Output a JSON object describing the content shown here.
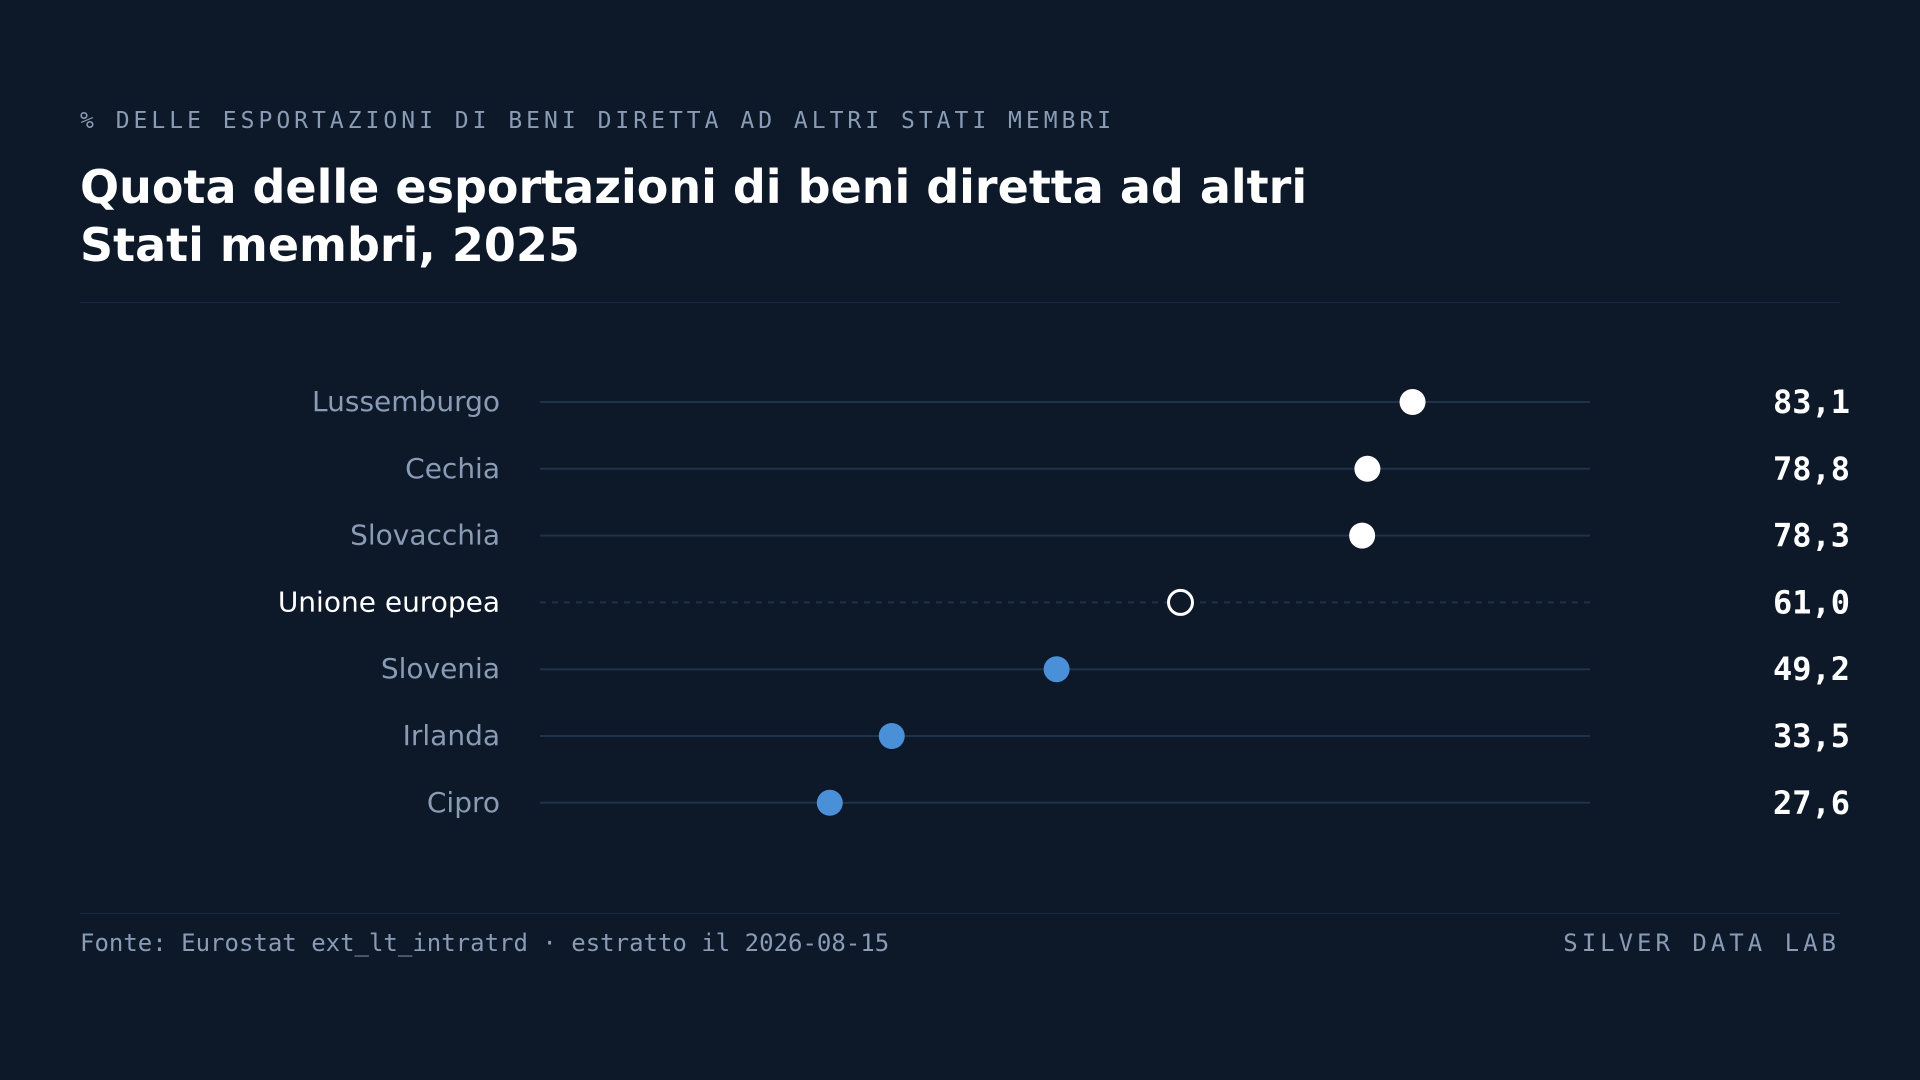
{
  "kicker": "% DELLE ESPORTAZIONI DI BENI DIRETTA AD ALTRI STATI MEMBRI",
  "title_line1": "Quota delle esportazioni di beni diretta ad altri",
  "title_line2": "Stati membri, 2025",
  "footer": {
    "source": "Fonte: Eurostat ext_lt_intratrd · estratto il 2026-08-15",
    "brand": "SILVER DATA LAB"
  },
  "colors": {
    "background": "#0d1929",
    "high": "#ffffff",
    "low": "#4a90d9",
    "reference": "#ffffff",
    "track": "#1f3348"
  },
  "chart_data": {
    "type": "scatter",
    "subtype": "dot-plot",
    "xlim": [
      0,
      100
    ],
    "grid": false,
    "categories": [
      "Lussemburgo",
      "Cechia",
      "Slovacchia",
      "Unione europea",
      "Slovenia",
      "Irlanda",
      "Cipro"
    ],
    "values": [
      83.1,
      78.8,
      78.3,
      61.0,
      49.2,
      33.5,
      27.6
    ],
    "labels": [
      "83,1",
      "78,8",
      "78,3",
      "61,0",
      "49,2",
      "33,5",
      "27,6"
    ],
    "reference_category": "Unione europea"
  }
}
